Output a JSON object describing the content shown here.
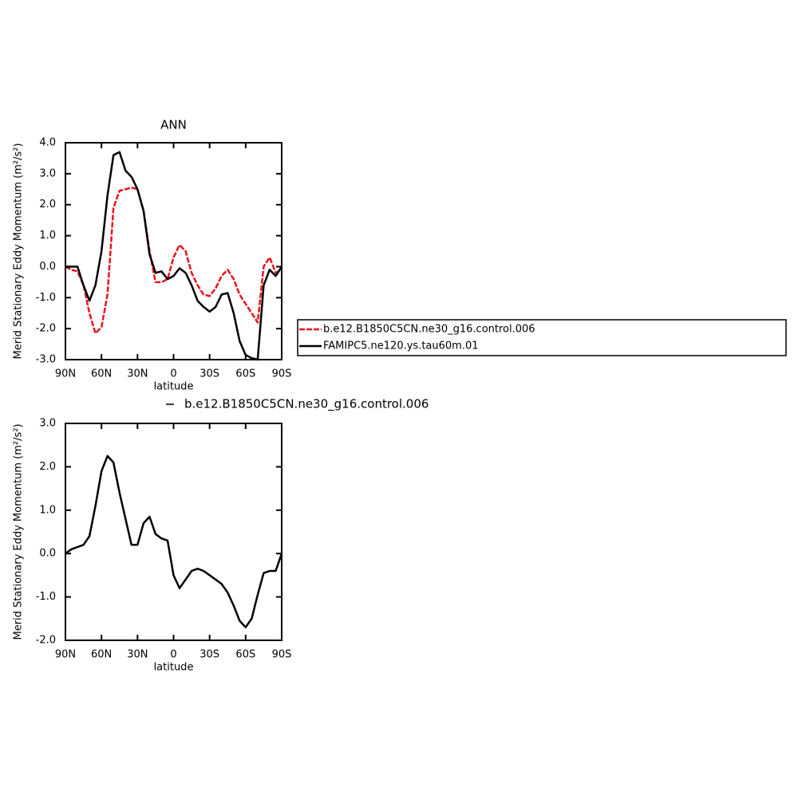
{
  "chart_data": [
    {
      "type": "line",
      "title": "ANN",
      "xlabel": "latitude",
      "ylabel": "Merid Stationary Eddy Momentum (m²/s²)",
      "x": [
        90,
        85,
        80,
        75,
        70,
        65,
        60,
        55,
        50,
        45,
        40,
        35,
        30,
        25,
        20,
        15,
        10,
        5,
        0,
        -5,
        -10,
        -15,
        -20,
        -25,
        -30,
        -35,
        -40,
        -45,
        -50,
        -55,
        -60,
        -65,
        -70,
        -75,
        -80,
        -85,
        -90
      ],
      "xlim": [
        90,
        -90
      ],
      "xticks": [
        {
          "value": 90,
          "label": "90N"
        },
        {
          "value": 60,
          "label": "60N"
        },
        {
          "value": 30,
          "label": "30N"
        },
        0,
        {
          "value": -30,
          "label": "30S"
        },
        {
          "value": -60,
          "label": "60S"
        },
        {
          "value": -90,
          "label": "90S"
        }
      ],
      "ylim": [
        -3,
        4
      ],
      "yticks": [
        {
          "value": -3,
          "label": "-3.0"
        },
        {
          "value": -2,
          "label": "-2.0"
        },
        {
          "value": -1,
          "label": "-1.0"
        },
        {
          "value": 0,
          "label": "0.0"
        },
        {
          "value": 1,
          "label": "1.0"
        },
        {
          "value": 2,
          "label": "2.0"
        },
        {
          "value": 3,
          "label": "3.0"
        },
        {
          "value": 4,
          "label": "4.0"
        }
      ],
      "series": [
        {
          "name": "b.e12.B1850C5CN.ne30_g16.control.006",
          "color": "#e8141e",
          "values": [
            0.0,
            -0.1,
            -0.15,
            -0.6,
            -1.5,
            -2.15,
            -1.95,
            -0.9,
            1.9,
            2.45,
            2.5,
            2.55,
            2.5,
            1.8,
            0.5,
            -0.5,
            -0.5,
            -0.4,
            0.3,
            0.7,
            0.5,
            -0.2,
            -0.6,
            -0.9,
            -0.95,
            -0.7,
            -0.3,
            -0.1,
            -0.4,
            -0.9,
            -1.2,
            -1.5,
            -1.8,
            0.0,
            0.3,
            -0.2,
            -0.1
          ]
        },
        {
          "name": "FAMIPC5.ne120.ys.tau60m.01",
          "color": "#000000",
          "values": [
            0.0,
            0.0,
            0.0,
            -0.6,
            -1.1,
            -0.6,
            0.5,
            2.3,
            3.6,
            3.7,
            3.1,
            2.9,
            2.5,
            1.8,
            0.4,
            -0.2,
            -0.15,
            -0.4,
            -0.3,
            -0.05,
            -0.2,
            -0.6,
            -1.1,
            -1.3,
            -1.45,
            -1.3,
            -0.9,
            -0.85,
            -1.5,
            -2.4,
            -2.85,
            -2.95,
            -3.0,
            -0.6,
            -0.1,
            -0.3,
            0.0
          ]
        }
      ]
    },
    {
      "type": "line",
      "xlabel": "latitude",
      "ylabel": "Merid Stationary Eddy Momentum (m²/s²)",
      "x": [
        90,
        85,
        80,
        75,
        70,
        65,
        60,
        55,
        50,
        45,
        40,
        35,
        30,
        25,
        20,
        15,
        10,
        5,
        0,
        -5,
        -10,
        -15,
        -20,
        -25,
        -30,
        -35,
        -40,
        -45,
        -50,
        -55,
        -60,
        -65,
        -70,
        -75,
        -80,
        -85,
        -90
      ],
      "xlim": [
        90,
        -90
      ],
      "xticks": [
        {
          "value": 90,
          "label": "90N"
        },
        {
          "value": 60,
          "label": "60N"
        },
        {
          "value": 30,
          "label": "30N"
        },
        0,
        {
          "value": -30,
          "label": "30S"
        },
        {
          "value": -60,
          "label": "60S"
        },
        {
          "value": -90,
          "label": "90S"
        }
      ],
      "ylim": [
        -2,
        3
      ],
      "yticks": [
        {
          "value": -2,
          "label": "-2.0"
        },
        {
          "value": -1,
          "label": "-1.0"
        },
        {
          "value": 0,
          "label": "0.0"
        },
        {
          "value": 1,
          "label": "1.0"
        },
        {
          "value": 2,
          "label": "2.0"
        },
        {
          "value": 3,
          "label": "3.0"
        }
      ],
      "series": [
        {
          "name": "b.e12.B1850C5CN.ne30_g16.control.006",
          "color": "#000000",
          "values": [
            0.0,
            0.1,
            0.15,
            0.2,
            0.4,
            1.1,
            1.9,
            2.25,
            2.1,
            1.4,
            0.8,
            0.2,
            0.2,
            0.7,
            0.85,
            0.45,
            0.35,
            0.3,
            -0.5,
            -0.8,
            -0.6,
            -0.4,
            -0.35,
            -0.4,
            -0.5,
            -0.6,
            -0.7,
            -0.9,
            -1.2,
            -1.55,
            -1.7,
            -1.5,
            -0.95,
            -0.45,
            -0.4,
            -0.4,
            0.0
          ]
        }
      ]
    }
  ]
}
